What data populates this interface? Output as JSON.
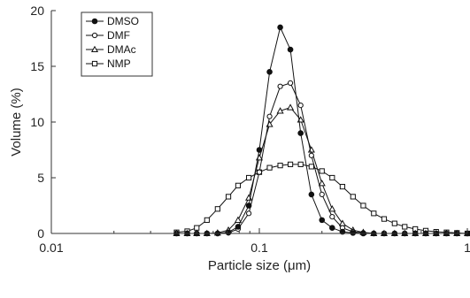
{
  "chart_data": {
    "type": "line",
    "title": "",
    "xlabel": "Particle size (μm)",
    "ylabel": "Volume (%)",
    "x_scale": "log",
    "xlim": [
      0.01,
      1
    ],
    "ylim": [
      0,
      20
    ],
    "x_ticks": [
      0.01,
      0.1,
      1
    ],
    "x_tick_labels": [
      "0.01",
      "0.1",
      "1"
    ],
    "y_ticks": [
      0,
      5,
      10,
      15,
      20
    ],
    "y_tick_labels": [
      "0",
      "5",
      "10",
      "15",
      "20"
    ],
    "grid": false,
    "legend_position": "top-left",
    "series": [
      {
        "name": "DMSO",
        "marker": "filled-circle",
        "x": [
          0.04,
          0.045,
          0.05,
          0.056,
          0.063,
          0.071,
          0.079,
          0.089,
          0.1,
          0.112,
          0.126,
          0.141,
          0.158,
          0.178,
          0.2,
          0.224,
          0.251,
          0.282,
          0.316,
          0.355,
          0.398,
          0.447,
          0.5,
          0.562,
          0.631,
          0.708,
          0.794,
          0.891,
          1.0
        ],
        "values": [
          0,
          0,
          0,
          0,
          0,
          0.1,
          0.6,
          2.5,
          7.5,
          14.5,
          18.5,
          16.5,
          9.0,
          3.5,
          1.2,
          0.5,
          0.15,
          0.05,
          0,
          0,
          0,
          0,
          0,
          0,
          0,
          0,
          0,
          0,
          0
        ]
      },
      {
        "name": "DMF",
        "marker": "open-circle",
        "x": [
          0.04,
          0.045,
          0.05,
          0.056,
          0.063,
          0.071,
          0.079,
          0.089,
          0.1,
          0.112,
          0.126,
          0.141,
          0.158,
          0.178,
          0.2,
          0.224,
          0.251,
          0.282,
          0.316,
          0.355,
          0.398,
          0.447,
          0.5,
          0.562,
          0.631,
          0.708,
          0.794,
          0.891,
          1.0
        ],
        "values": [
          0,
          0,
          0,
          0,
          0,
          0.05,
          0.4,
          1.8,
          5.5,
          10.5,
          13.2,
          13.5,
          11.5,
          7.0,
          3.5,
          1.5,
          0.5,
          0.15,
          0.05,
          0,
          0,
          0,
          0,
          0,
          0,
          0,
          0,
          0,
          0
        ]
      },
      {
        "name": "DMAc",
        "marker": "open-triangle",
        "x": [
          0.04,
          0.045,
          0.05,
          0.056,
          0.063,
          0.071,
          0.079,
          0.089,
          0.1,
          0.112,
          0.126,
          0.141,
          0.158,
          0.178,
          0.2,
          0.224,
          0.251,
          0.282,
          0.316,
          0.355,
          0.398,
          0.447,
          0.5,
          0.562,
          0.631,
          0.708,
          0.794,
          0.891,
          1.0
        ],
        "values": [
          0,
          0,
          0,
          0,
          0.05,
          0.3,
          1.2,
          3.2,
          6.8,
          9.8,
          11.0,
          11.3,
          10.2,
          7.5,
          4.5,
          2.2,
          0.9,
          0.3,
          0.1,
          0,
          0,
          0,
          0,
          0,
          0,
          0,
          0,
          0,
          0
        ]
      },
      {
        "name": "NMP",
        "marker": "open-square",
        "x": [
          0.04,
          0.045,
          0.05,
          0.056,
          0.063,
          0.071,
          0.079,
          0.089,
          0.1,
          0.112,
          0.126,
          0.141,
          0.158,
          0.178,
          0.2,
          0.224,
          0.251,
          0.282,
          0.316,
          0.355,
          0.398,
          0.447,
          0.5,
          0.562,
          0.631,
          0.708,
          0.794,
          0.891,
          1.0
        ],
        "values": [
          0.1,
          0.2,
          0.5,
          1.2,
          2.2,
          3.3,
          4.3,
          5.0,
          5.5,
          5.9,
          6.1,
          6.2,
          6.2,
          6.0,
          5.6,
          5.0,
          4.2,
          3.3,
          2.5,
          1.8,
          1.3,
          0.9,
          0.6,
          0.4,
          0.25,
          0.15,
          0.1,
          0.05,
          0
        ]
      }
    ]
  }
}
